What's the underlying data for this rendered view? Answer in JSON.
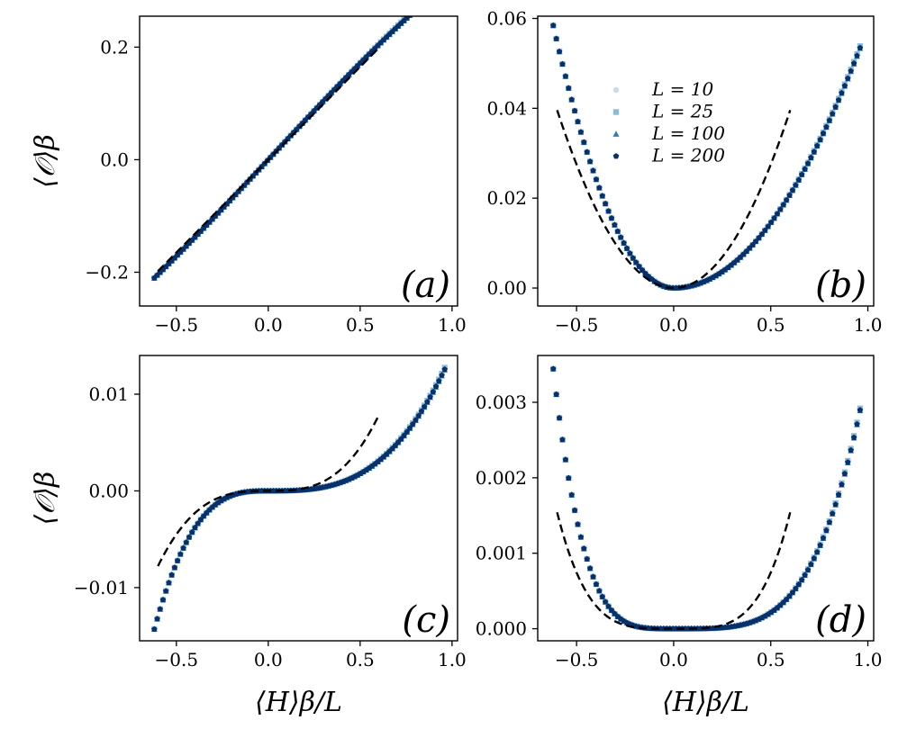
{
  "chart_data": [
    {
      "id": "a",
      "type": "scatter",
      "panel_label": "(a)",
      "ylabel": "⟨𝒪⟩β",
      "xlabel": "",
      "xlim": [
        -0.7,
        1.03
      ],
      "ylim": [
        -0.26,
        0.255
      ],
      "xticks": [
        -0.5,
        0.0,
        0.5,
        1.0
      ],
      "xtick_labels": [
        "−0.5",
        "0.0",
        "0.5",
        "1.0"
      ],
      "yticks": [
        -0.2,
        0.0,
        0.2
      ],
      "ytick_labels": [
        "−0.2",
        "0.0",
        "0.2"
      ],
      "model": "odd",
      "scatter": {
        "c1": 0.35,
        "c3": -0.028,
        "x_range": [
          -0.62,
          0.96
        ]
      },
      "dashed": {
        "c1": 0.33,
        "c3": 0.0,
        "x_range": [
          -0.6,
          0.6
        ]
      },
      "legend": false
    },
    {
      "id": "b",
      "type": "scatter",
      "panel_label": "(b)",
      "ylabel": "",
      "xlabel": "",
      "xlim": [
        -0.7,
        1.03
      ],
      "ylim": [
        -0.004,
        0.0605
      ],
      "xticks": [
        -0.5,
        0.0,
        0.5,
        1.0
      ],
      "xtick_labels": [
        "−0.5",
        "0.0",
        "0.5",
        "1.0"
      ],
      "yticks": [
        0.0,
        0.02,
        0.04,
        0.06
      ],
      "ytick_labels": [
        "0.00",
        "0.02",
        "0.04",
        "0.06"
      ],
      "model": "even",
      "scatter_left": {
        "exp": 2,
        "coef": 0.152,
        "x_range": [
          -0.62,
          0
        ]
      },
      "scatter_right": {
        "exp": 2,
        "coef": 0.058,
        "x_range": [
          0,
          0.96
        ]
      },
      "dashed": {
        "exp": 2,
        "coef": 0.11,
        "x_range": [
          -0.6,
          0.6
        ]
      },
      "legend": true
    },
    {
      "id": "c",
      "type": "scatter",
      "panel_label": "(c)",
      "ylabel": "⟨𝒪⟩β",
      "xlabel": "⟨H⟩β/L",
      "xlim": [
        -0.7,
        1.03
      ],
      "ylim": [
        -0.0155,
        0.014
      ],
      "xticks": [
        -0.5,
        0.0,
        0.5,
        1.0
      ],
      "xtick_labels": [
        "−0.5",
        "0.0",
        "0.5",
        "1.0"
      ],
      "yticks": [
        -0.01,
        0.0,
        0.01
      ],
      "ytick_labels": [
        "−0.01",
        "0.00",
        "0.01"
      ],
      "model": "cubic",
      "scatter_left": {
        "exp": 3,
        "coef": 0.06,
        "x_range": [
          -0.62,
          0
        ]
      },
      "scatter_right": {
        "exp": 3,
        "coef": 0.0142,
        "x_range": [
          0,
          0.96
        ]
      },
      "dashed": {
        "exp": 3,
        "coef": 0.036,
        "x_range": [
          -0.6,
          0.6
        ]
      },
      "legend": false
    },
    {
      "id": "d",
      "type": "scatter",
      "panel_label": "(d)",
      "ylabel": "",
      "xlabel": "⟨H⟩β/L",
      "xlim": [
        -0.7,
        1.03
      ],
      "ylim": [
        -0.00016,
        0.00362
      ],
      "xticks": [
        -0.5,
        0.0,
        0.5,
        1.0
      ],
      "xtick_labels": [
        "−0.5",
        "0.0",
        "0.5",
        "1.0"
      ],
      "yticks": [
        0.0,
        0.001,
        0.002,
        0.003
      ],
      "ytick_labels": [
        "0.000",
        "0.001",
        "0.002",
        "0.003"
      ],
      "model": "even",
      "scatter_left": {
        "exp": 4,
        "coef": 0.0233,
        "x_range": [
          -0.62,
          0
        ]
      },
      "scatter_right": {
        "exp": 4,
        "coef": 0.00341,
        "x_range": [
          0,
          0.96
        ]
      },
      "dashed": {
        "exp": 4,
        "coef": 0.0119,
        "x_range": [
          -0.6,
          0.6
        ]
      },
      "legend": false
    }
  ],
  "series": [
    {
      "label": "L = 10",
      "color": "#c6dbef",
      "marker": "circle",
      "offset": 0.004
    },
    {
      "label": "L = 25",
      "color": "#85bcdb",
      "marker": "square",
      "offset": 0.012
    },
    {
      "label": "L = 100",
      "color": "#2f7ebc",
      "marker": "triangle",
      "offset": -0.004
    },
    {
      "label": "L = 200",
      "color": "#08306b",
      "marker": "pentagon",
      "offset": 0.0
    }
  ],
  "colors": {
    "dashed": "#000000",
    "axes": "#000000"
  }
}
